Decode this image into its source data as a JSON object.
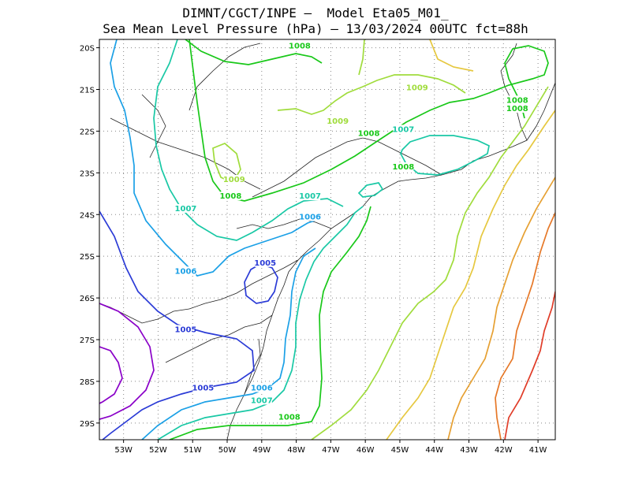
{
  "title": {
    "line1": "DIMNT/CGCT/INPE –  Model Eta05_M01_",
    "line2": "Sea Mean Level Pressure (hPa) – 13/03/2024 00UTC fct=88h"
  },
  "axes": {
    "lat_labels": [
      "20S",
      "21S",
      "22S",
      "23S",
      "24S",
      "25S",
      "26S",
      "27S",
      "28S",
      "29S"
    ],
    "lon_labels": [
      "53W",
      "52W",
      "51W",
      "50W",
      "49W",
      "48W",
      "47W",
      "46W",
      "45W",
      "44W",
      "43W",
      "42W",
      "41W"
    ],
    "lon_range": [
      -53.7,
      -40.5
    ],
    "lat_range": [
      -29.4,
      -19.8
    ]
  },
  "colors": {
    "1004": "#8a00c8",
    "1005": "#2b3bd6",
    "1006": "#1ba0e6",
    "1007": "#19c8a5",
    "1008": "#19c819",
    "1009": "#a0dc3c",
    "1010": "#e6c840",
    "1011": "#e6a032",
    "1012": "#e67828",
    "1013": "#e03c28"
  },
  "contour_labels": [
    {
      "text": "1008",
      "value": 1008,
      "lon": -47.9,
      "lat": -20.0
    },
    {
      "text": "1009",
      "value": 1009,
      "lon": -44.5,
      "lat": -21.0
    },
    {
      "text": "1008",
      "value": 1008,
      "lon": -41.6,
      "lat": -21.3
    },
    {
      "text": "1008",
      "value": 1008,
      "lon": -41.6,
      "lat": -21.5
    },
    {
      "text": "1009",
      "value": 1009,
      "lon": -46.8,
      "lat": -21.8
    },
    {
      "text": "1007",
      "value": 1007,
      "lon": -44.9,
      "lat": -22.0
    },
    {
      "text": "1008",
      "value": 1008,
      "lon": -45.9,
      "lat": -22.1
    },
    {
      "text": "1008",
      "value": 1008,
      "lon": -44.9,
      "lat": -22.9
    },
    {
      "text": "1009",
      "value": 1009,
      "lon": -49.8,
      "lat": -23.2
    },
    {
      "text": "1008",
      "value": 1008,
      "lon": -49.9,
      "lat": -23.6
    },
    {
      "text": "1007",
      "value": 1007,
      "lon": -47.6,
      "lat": -23.6
    },
    {
      "text": "1007",
      "value": 1007,
      "lon": -51.2,
      "lat": -23.9
    },
    {
      "text": "1006",
      "value": 1006,
      "lon": -47.6,
      "lat": -24.1
    },
    {
      "text": "1005",
      "value": 1005,
      "lon": -48.9,
      "lat": -25.2
    },
    {
      "text": "1006",
      "value": 1006,
      "lon": -51.2,
      "lat": -25.4
    },
    {
      "text": "1005",
      "value": 1005,
      "lon": -51.2,
      "lat": -26.8
    },
    {
      "text": "1005",
      "value": 1005,
      "lon": -50.7,
      "lat": -28.2
    },
    {
      "text": "1006",
      "value": 1006,
      "lon": -49.0,
      "lat": -28.2
    },
    {
      "text": "1007",
      "value": 1007,
      "lon": -49.0,
      "lat": -28.5
    },
    {
      "text": "1008",
      "value": 1008,
      "lon": -48.2,
      "lat": -28.9
    }
  ]
}
